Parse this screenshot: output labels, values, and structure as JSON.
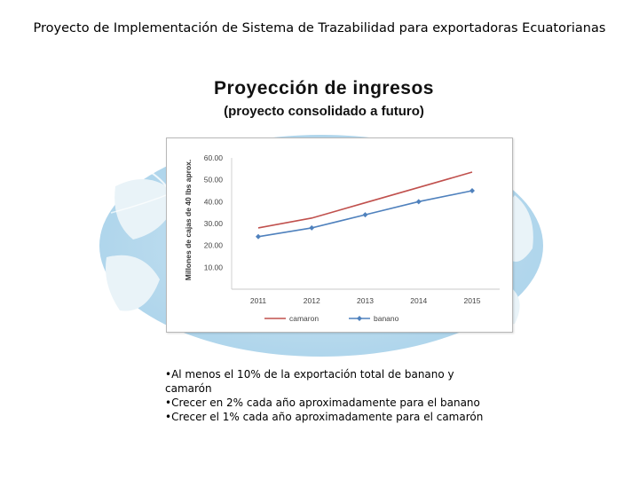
{
  "header": {
    "title": "Proyecto de Implementación de Sistema de Trazabilidad para exportadoras Ecuatorianas"
  },
  "slide": {
    "title": "Proyección de ingresos",
    "subtitle": "(proyecto consolidado a futuro)"
  },
  "bullets": [
    "•Al menos el 10% de la exportación total de banano y camarón",
    "•Crecer en 2% cada año aproximadamente para el banano",
    "•Crecer el 1% cada año aproximadamente para el camarón"
  ],
  "chart_data": {
    "type": "line",
    "title": "",
    "xlabel": "",
    "ylabel": "Millones de cajas de 40 lbs aprox.",
    "categories": [
      "2011",
      "2012",
      "2013",
      "2014",
      "2015"
    ],
    "yticks": [
      "10.00",
      "20.00",
      "30.00",
      "40.00",
      "50.00",
      "60.00"
    ],
    "ylim": [
      0,
      60
    ],
    "grid": false,
    "legend": "bottom",
    "series": [
      {
        "name": "camaron",
        "color": "#c0504d",
        "marker": "none",
        "values": [
          28,
          32.5,
          39.5,
          46.5,
          53.5
        ]
      },
      {
        "name": "banano",
        "color": "#4f81bd",
        "marker": "diamond",
        "values": [
          24,
          28,
          34,
          40,
          45
        ]
      }
    ]
  }
}
